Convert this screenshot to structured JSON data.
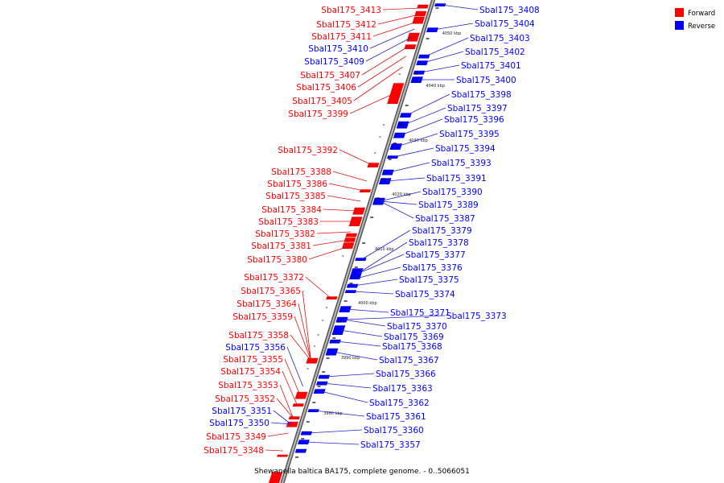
{
  "caption": "Shewanella baltica BA175, complete genome. - 0..5066051",
  "legend": [
    {
      "label": "Forward",
      "color": "#ff0000"
    },
    {
      "label": "Reverse",
      "color": "#0000ff"
    }
  ],
  "colors": {
    "forward": "#ff0000",
    "reverse": "#0000ff",
    "axis": "#999999",
    "forward_line": "#e01010",
    "reverse_line": "#2020d0"
  },
  "ticks": [
    "4050 kbp",
    "4040 kbp",
    "4030 kbp",
    "4020 kbp",
    "4010 kbp",
    "4000 kbp",
    "3990 kbp",
    "3980 kbp"
  ],
  "forward_labels": [
    "Sbal175_3413",
    "Sbal175_3412",
    "Sbal175_3411",
    "Sbal175_3410",
    "Sbal175_3409",
    "Sbal175_3407",
    "Sbal175_3406",
    "Sbal175_3405",
    "Sbal175_3399",
    "Sbal175_3392",
    "Sbal175_3388",
    "Sbal175_3386",
    "Sbal175_3385",
    "Sbal175_3384",
    "Sbal175_3383",
    "Sbal175_3382",
    "Sbal175_3381",
    "Sbal175_3380",
    "Sbal175_3372",
    "Sbal175_3365",
    "Sbal175_3364",
    "Sbal175_3359",
    "Sbal175_3358",
    "Sbal175_3356",
    "Sbal175_3355",
    "Sbal175_3354",
    "Sbal175_3353",
    "Sbal175_3352",
    "Sbal175_3351",
    "Sbal175_3350",
    "Sbal175_3349",
    "Sbal175_3348"
  ],
  "forward_strand": [
    "f",
    "f",
    "f",
    "r",
    "r",
    "f",
    "f",
    "f",
    "f",
    "f",
    "f",
    "f",
    "f",
    "f",
    "f",
    "f",
    "f",
    "f",
    "f",
    "f",
    "f",
    "f",
    "f",
    "r",
    "f",
    "f",
    "f",
    "f",
    "r",
    "r",
    "f",
    "f"
  ],
  "reverse_labels": [
    "Sbal175_3408",
    "Sbal175_3404",
    "Sbal175_3403",
    "Sbal175_3402",
    "Sbal175_3401",
    "Sbal175_3400",
    "Sbal175_3398",
    "Sbal175_3397",
    "Sbal175_3396",
    "Sbal175_3395",
    "Sbal175_3394",
    "Sbal175_3393",
    "Sbal175_3391",
    "Sbal175_3390",
    "Sbal175_3389",
    "Sbal175_3387",
    "Sbal175_3379",
    "Sbal175_3378",
    "Sbal175_3377",
    "Sbal175_3376",
    "Sbal175_3375",
    "Sbal175_3374",
    "Sbal175_3371",
    "Sbal175_3373",
    "Sbal175_3370",
    "Sbal175_3369",
    "Sbal175_3368",
    "Sbal175_3367",
    "Sbal175_3366",
    "Sbal175_3363",
    "Sbal175_3362",
    "Sbal175_3361",
    "Sbal175_3360",
    "Sbal175_3357"
  ]
}
